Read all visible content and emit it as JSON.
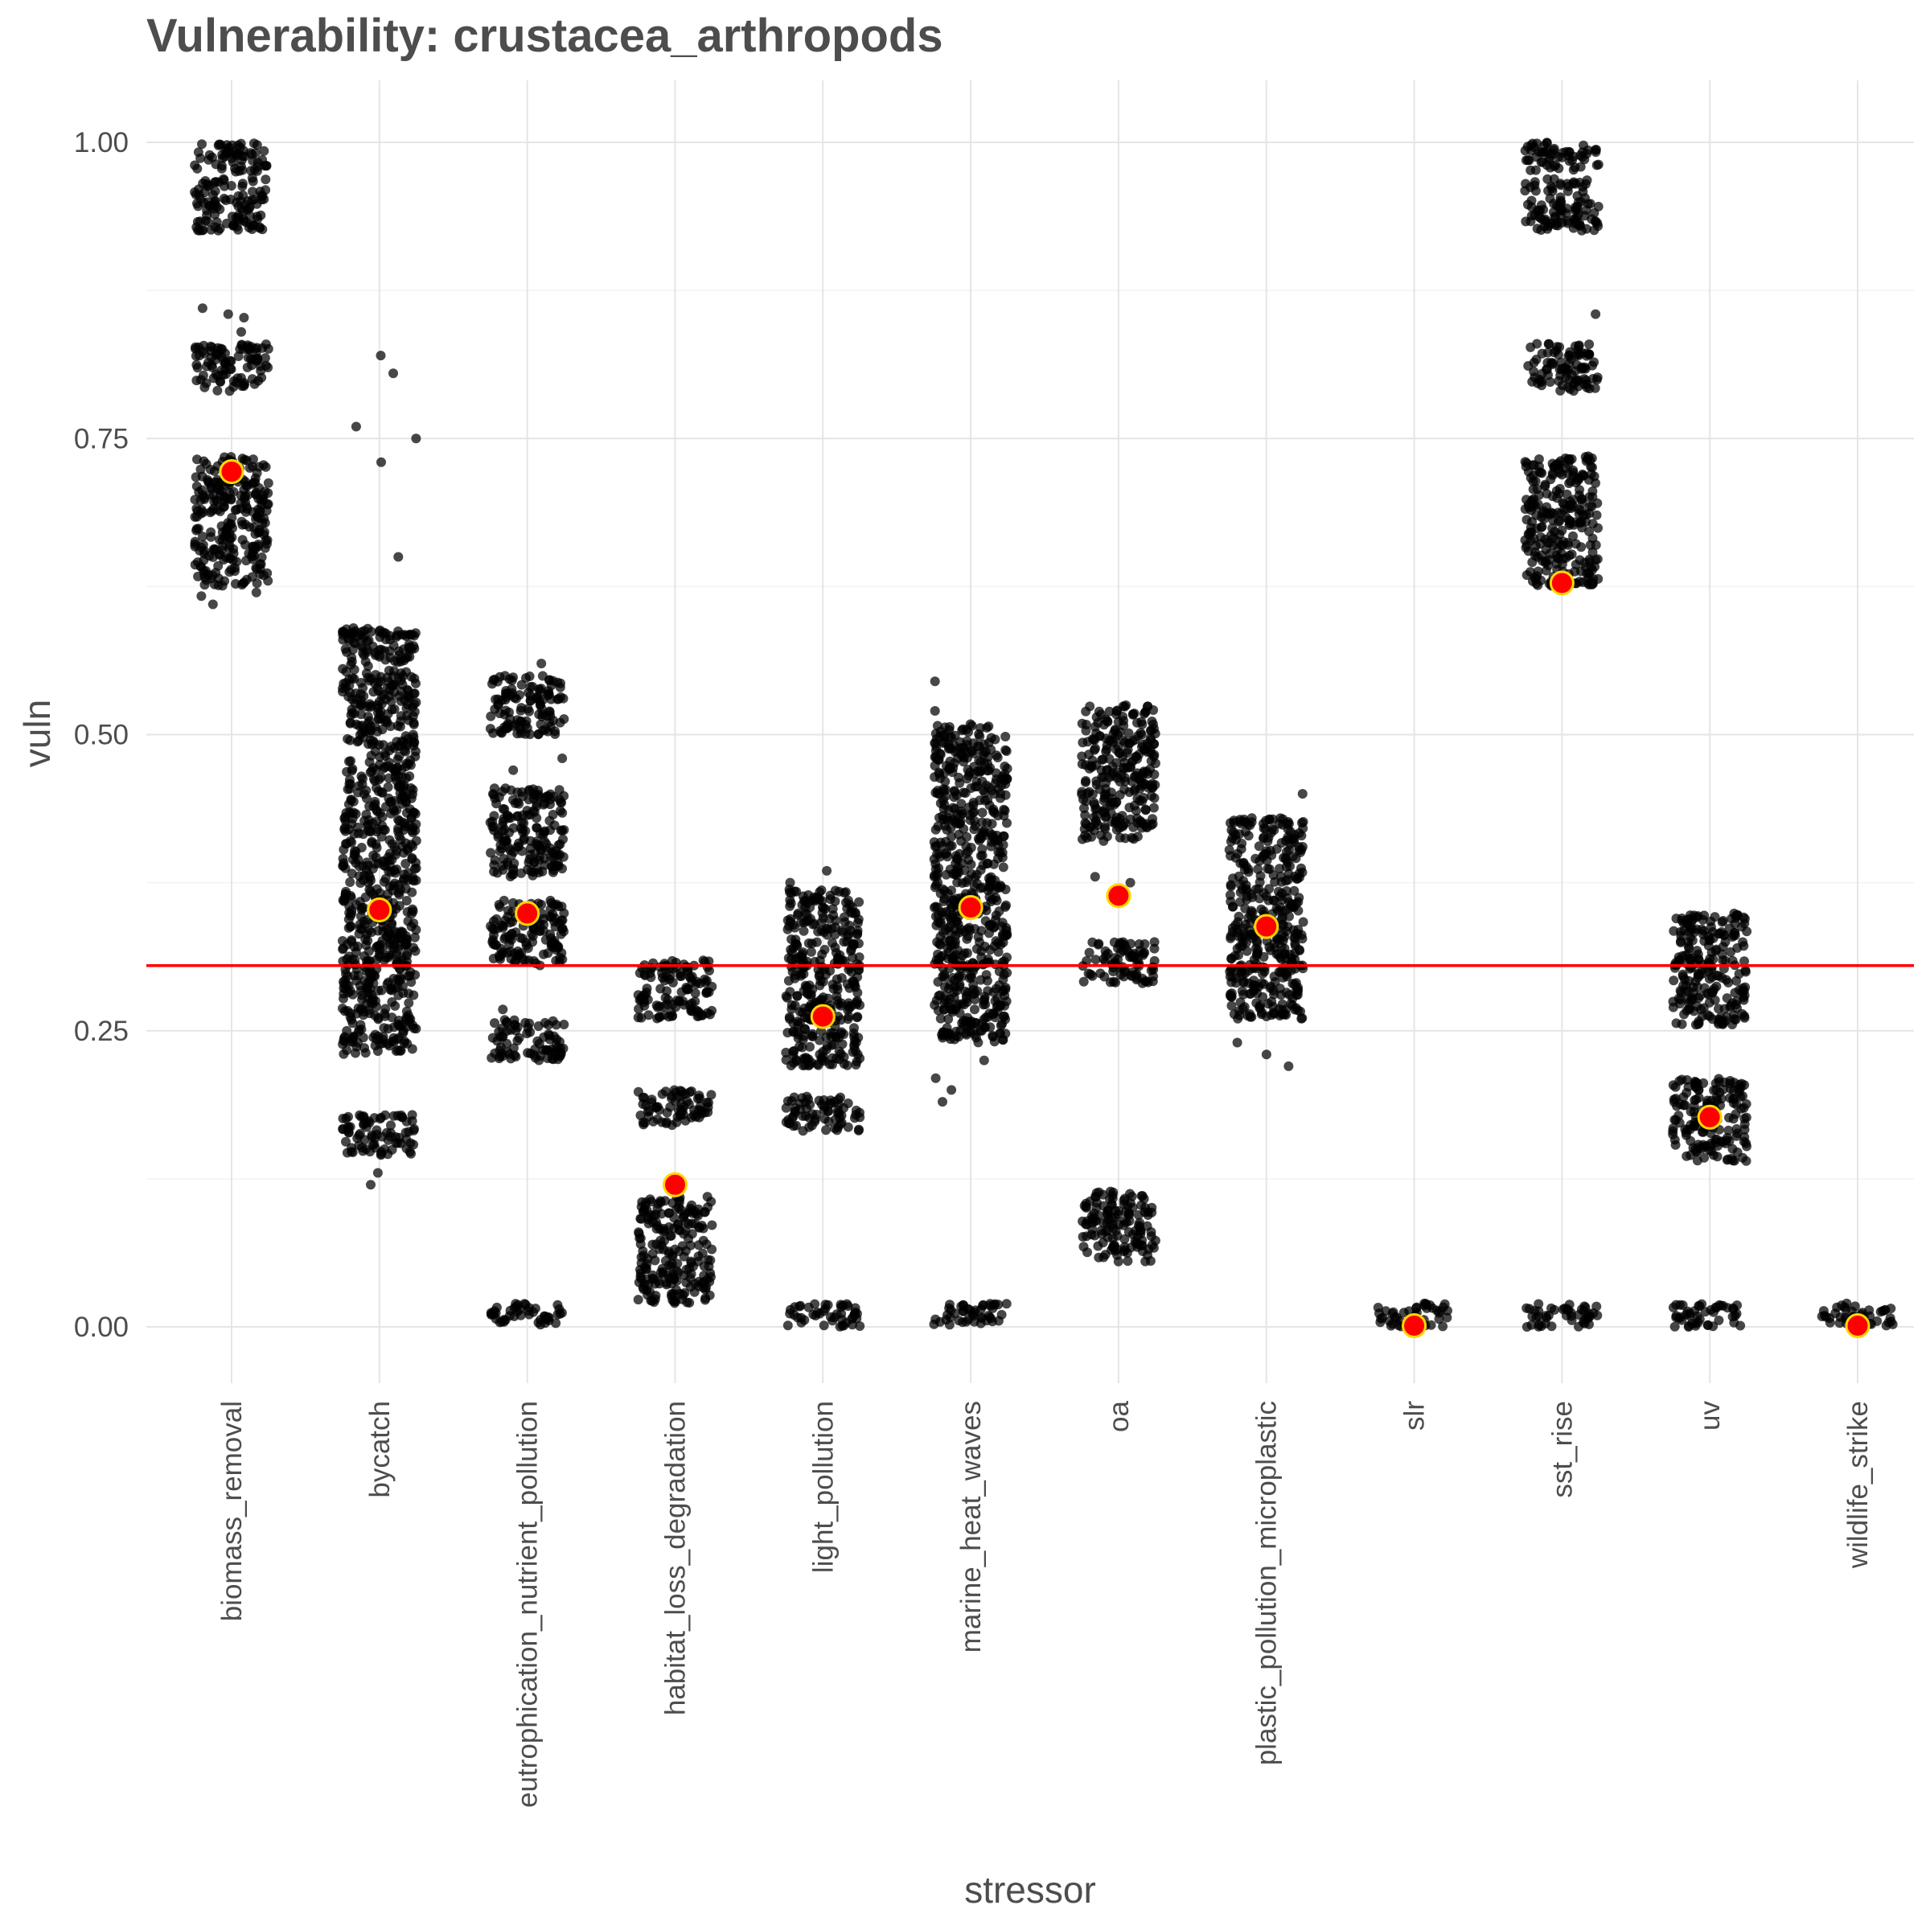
{
  "chart_data": {
    "type": "scatter",
    "title": "Vulnerability: crustacea_arthropods",
    "xlabel": "stressor",
    "ylabel": "vuln",
    "ylim": [
      -0.05,
      1.05
    ],
    "yticks": [
      0.0,
      0.25,
      0.5,
      0.75,
      1.0
    ],
    "ytick_labels": [
      "0.00",
      "0.25",
      "0.50",
      "0.75",
      "1.00"
    ],
    "grid": true,
    "categories": [
      "biomass_removal",
      "bycatch",
      "eutrophication_nutrient_pollution",
      "habitat_loss_degradation",
      "light_pollution",
      "marine_heat_waves",
      "oa",
      "plastic_pollution_microplastic",
      "slr",
      "sst_rise",
      "uv",
      "wildlife_strike"
    ],
    "reference_line": {
      "y": 0.305,
      "color": "#ff0000"
    },
    "series": [
      {
        "role": "points",
        "color": "#000000",
        "bands": [
          [
            [
              0.625,
              0.735
            ],
            [
              0.79,
              0.83
            ],
            [
              0.925,
              0.97
            ],
            [
              0.975,
              1.0
            ]
          ],
          [
            [
              0.145,
              0.18
            ],
            [
              0.23,
              0.31
            ],
            [
              0.31,
              0.46
            ],
            [
              0.46,
              0.59
            ]
          ],
          [
            [
              0.0,
              0.02
            ],
            [
              0.225,
              0.26
            ],
            [
              0.305,
              0.36
            ],
            [
              0.38,
              0.455
            ],
            [
              0.5,
              0.55
            ]
          ],
          [
            [
              0.02,
              0.11
            ],
            [
              0.17,
              0.2
            ],
            [
              0.26,
              0.31
            ]
          ],
          [
            [
              0.0,
              0.02
            ],
            [
              0.165,
              0.195
            ],
            [
              0.22,
              0.37
            ]
          ],
          [
            [
              0.0,
              0.02
            ],
            [
              0.24,
              0.51
            ]
          ],
          [
            [
              0.055,
              0.115
            ],
            [
              0.29,
              0.325
            ],
            [
              0.41,
              0.465
            ],
            [
              0.465,
              0.525
            ]
          ],
          [
            [
              0.26,
              0.43
            ]
          ],
          [
            [
              0.0,
              0.02
            ]
          ],
          [
            [
              0.0,
              0.02
            ],
            [
              0.625,
              0.735
            ],
            [
              0.79,
              0.83
            ],
            [
              0.925,
              0.97
            ],
            [
              0.975,
              1.0
            ]
          ],
          [
            [
              0.0,
              0.02
            ],
            [
              0.14,
              0.21
            ],
            [
              0.255,
              0.35
            ]
          ],
          [
            [
              0.0,
              0.02
            ]
          ]
        ],
        "outliers": [
          [
            [
              0.855,
              0.84
            ],
            [
              0.852,
              0.61
            ],
            [
              0.86,
              0.617
            ],
            [
              0.81,
              0.62
            ]
          ],
          [
            [
              0.12,
              0.13
            ],
            [
              0.76,
              0.75
            ],
            [
              0.82,
              0.805
            ],
            [
              0.73,
              0.65
            ]
          ],
          [
            [
              0.48,
              0.47
            ],
            [
              0.268,
              0.56
            ]
          ],
          [],
          [
            [
              0.385,
              0.375
            ]
          ],
          [
            [
              0.19,
              0.2
            ],
            [
              0.21,
              0.225
            ],
            [
              0.545,
              0.52
            ]
          ],
          [
            [
              0.375,
              0.38
            ]
          ],
          [
            [
              0.23,
              0.24
            ],
            [
              0.22,
              0.45
            ]
          ],
          [],
          [
            [
              0.855
            ]
          ],
          [],
          []
        ]
      },
      {
        "role": "mean",
        "color": "#ff0000",
        "edge_color": "#ffd700",
        "values": [
          0.722,
          0.352,
          0.349,
          0.12,
          0.262,
          0.354,
          0.364,
          0.338,
          0.001,
          0.628,
          0.177,
          0.001
        ]
      }
    ]
  }
}
